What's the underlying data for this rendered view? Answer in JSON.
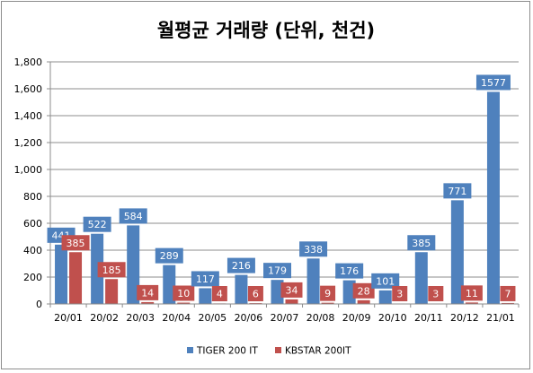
{
  "chart_data": {
    "type": "bar",
    "title": "월평균 거래량 (단위, 천건)",
    "xlabel": "",
    "ylabel": "",
    "ylim": [
      0,
      1800
    ],
    "yticks": [
      "0",
      "200",
      "400",
      "600",
      "800",
      "1,000",
      "1,200",
      "1,400",
      "1,600",
      "1,800"
    ],
    "ytick_values": [
      0,
      200,
      400,
      600,
      800,
      1000,
      1200,
      1400,
      1600,
      1800
    ],
    "grid": true,
    "legend_position": "bottom",
    "categories": [
      "20/01",
      "20/02",
      "20/03",
      "20/04",
      "20/05",
      "20/06",
      "20/07",
      "20/08",
      "20/09",
      "20/10",
      "20/11",
      "20/12",
      "21/01"
    ],
    "series": [
      {
        "name": "TIGER 200 IT",
        "color": "#4f81bd",
        "values": [
          441,
          522,
          584,
          289,
          117,
          216,
          179,
          338,
          176,
          101,
          385,
          771,
          1577
        ],
        "labels": [
          "441",
          "522",
          "584",
          "289",
          "117",
          "216",
          "179",
          "338",
          "176",
          "101",
          "385",
          "771",
          "1577"
        ]
      },
      {
        "name": "KBSTAR 200IT",
        "color": "#c0504d",
        "values": [
          385,
          185,
          14,
          10,
          4,
          6,
          34,
          9,
          28,
          3,
          3,
          11,
          7
        ],
        "labels": [
          "385",
          "185",
          "14",
          "10",
          "4",
          "6",
          "34",
          "9",
          "28",
          "3",
          "3",
          "11",
          "7"
        ]
      }
    ]
  }
}
